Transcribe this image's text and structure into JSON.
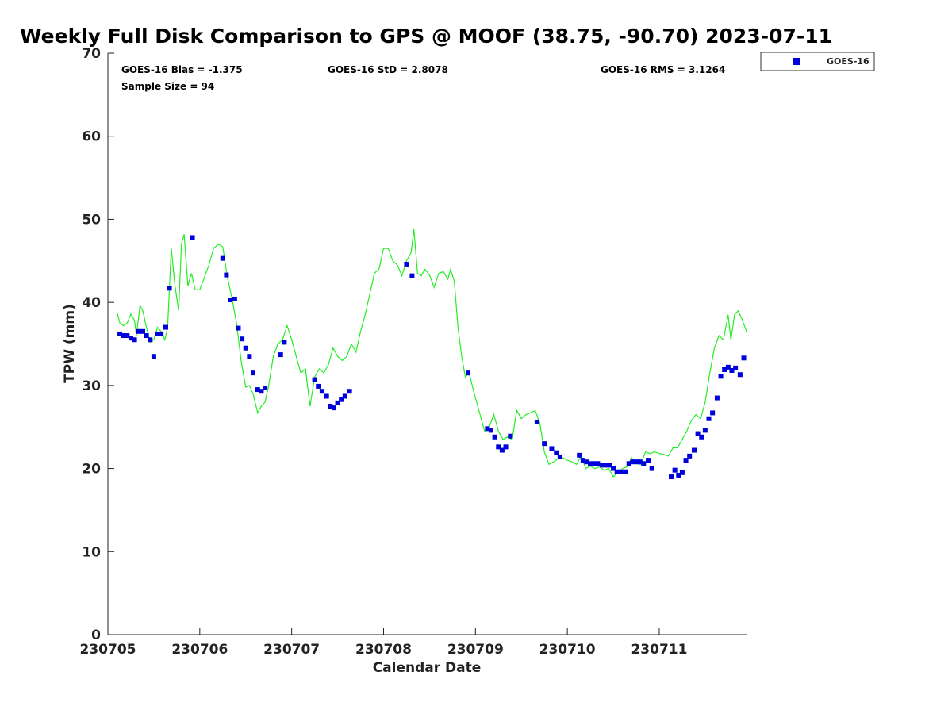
{
  "chart_data": {
    "type": "scatter",
    "title": "Weekly Full Disk Comparison to GPS @ MOOF (38.75, -90.70) 2023-07-11",
    "xlabel": "Calendar Date",
    "ylabel": "TPW (mm)",
    "xlim": [
      230705,
      230711.95
    ],
    "ylim": [
      0,
      70
    ],
    "x_ticks": [
      {
        "value": 230705,
        "label": "230705"
      },
      {
        "value": 230706,
        "label": "230706"
      },
      {
        "value": 230707,
        "label": "230707"
      },
      {
        "value": 230708,
        "label": "230708"
      },
      {
        "value": 230709,
        "label": "230709"
      },
      {
        "value": 230710,
        "label": "230710"
      },
      {
        "value": 230711,
        "label": "230711"
      }
    ],
    "y_ticks": [
      {
        "value": 0,
        "label": "0"
      },
      {
        "value": 10,
        "label": "10"
      },
      {
        "value": 20,
        "label": "20"
      },
      {
        "value": 30,
        "label": "30"
      },
      {
        "value": 40,
        "label": "40"
      },
      {
        "value": 50,
        "label": "50"
      },
      {
        "value": 60,
        "label": "60"
      },
      {
        "value": 70,
        "label": "70"
      }
    ],
    "grid": false,
    "legend_position": "top-right, outside plot",
    "stats": {
      "bias": "GOES-16 Bias = -1.375",
      "std": "GOES-16 StD = 2.8078",
      "rms": "GOES-16 RMS = 3.1264",
      "sample": "Sample Size = 94"
    },
    "series": [
      {
        "name": "GOES-16",
        "marker": "square",
        "color": "#0000dd",
        "points": [
          [
            230705.13,
            36.2
          ],
          [
            230705.17,
            36.0
          ],
          [
            230705.21,
            36.0
          ],
          [
            230705.25,
            35.7
          ],
          [
            230705.29,
            35.5
          ],
          [
            230705.33,
            36.5
          ],
          [
            230705.38,
            36.5
          ],
          [
            230705.42,
            36.0
          ],
          [
            230705.46,
            35.5
          ],
          [
            230705.5,
            33.5
          ],
          [
            230705.54,
            36.2
          ],
          [
            230705.58,
            36.2
          ],
          [
            230705.63,
            37.0
          ],
          [
            230705.67,
            41.7
          ],
          [
            230705.92,
            47.8
          ],
          [
            230706.25,
            45.3
          ],
          [
            230706.29,
            43.3
          ],
          [
            230706.33,
            40.3
          ],
          [
            230706.38,
            40.4
          ],
          [
            230706.42,
            36.9
          ],
          [
            230706.46,
            35.6
          ],
          [
            230706.5,
            34.5
          ],
          [
            230706.54,
            33.5
          ],
          [
            230706.58,
            31.5
          ],
          [
            230706.63,
            29.5
          ],
          [
            230706.67,
            29.3
          ],
          [
            230706.71,
            29.7
          ],
          [
            230706.88,
            33.7
          ],
          [
            230706.92,
            35.2
          ],
          [
            230707.25,
            30.7
          ],
          [
            230707.29,
            29.9
          ],
          [
            230707.33,
            29.3
          ],
          [
            230707.38,
            28.7
          ],
          [
            230707.42,
            27.5
          ],
          [
            230707.46,
            27.3
          ],
          [
            230707.5,
            27.9
          ],
          [
            230707.54,
            28.3
          ],
          [
            230707.58,
            28.7
          ],
          [
            230707.63,
            29.3
          ],
          [
            230708.25,
            44.6
          ],
          [
            230708.31,
            43.2
          ],
          [
            230708.92,
            31.5
          ],
          [
            230709.13,
            24.8
          ],
          [
            230709.17,
            24.6
          ],
          [
            230709.21,
            23.8
          ],
          [
            230709.25,
            22.6
          ],
          [
            230709.29,
            22.2
          ],
          [
            230709.33,
            22.6
          ],
          [
            230709.38,
            23.9
          ],
          [
            230709.67,
            25.6
          ],
          [
            230709.75,
            23.0
          ],
          [
            230709.83,
            22.4
          ],
          [
            230709.88,
            21.9
          ],
          [
            230709.92,
            21.4
          ],
          [
            230710.13,
            21.6
          ],
          [
            230710.17,
            21.0
          ],
          [
            230710.21,
            20.8
          ],
          [
            230710.25,
            20.6
          ],
          [
            230710.29,
            20.6
          ],
          [
            230710.33,
            20.6
          ],
          [
            230710.38,
            20.4
          ],
          [
            230710.42,
            20.4
          ],
          [
            230710.46,
            20.4
          ],
          [
            230710.5,
            20.0
          ],
          [
            230710.54,
            19.6
          ],
          [
            230710.58,
            19.6
          ],
          [
            230710.63,
            19.6
          ],
          [
            230710.67,
            20.6
          ],
          [
            230710.71,
            20.8
          ],
          [
            230710.75,
            20.8
          ],
          [
            230710.79,
            20.8
          ],
          [
            230710.83,
            20.6
          ],
          [
            230710.88,
            21.0
          ],
          [
            230710.92,
            20.0
          ],
          [
            230711.13,
            19.0
          ],
          [
            230711.17,
            19.8
          ],
          [
            230711.21,
            19.2
          ],
          [
            230711.25,
            19.5
          ],
          [
            230711.29,
            21.0
          ],
          [
            230711.33,
            21.5
          ],
          [
            230711.38,
            22.2
          ],
          [
            230711.42,
            24.2
          ],
          [
            230711.46,
            23.8
          ],
          [
            230711.5,
            24.6
          ],
          [
            230711.54,
            26.0
          ],
          [
            230711.58,
            26.7
          ],
          [
            230711.63,
            28.5
          ],
          [
            230711.67,
            31.1
          ],
          [
            230711.71,
            31.9
          ],
          [
            230711.75,
            32.2
          ],
          [
            230711.79,
            31.8
          ],
          [
            230711.83,
            32.1
          ],
          [
            230711.88,
            31.3
          ],
          [
            230711.92,
            33.3
          ]
        ]
      },
      {
        "type": "line",
        "color": "#22ee22",
        "points": [
          [
            230705.1,
            38.8
          ],
          [
            230705.13,
            37.5
          ],
          [
            230705.17,
            37.2
          ],
          [
            230705.21,
            37.5
          ],
          [
            230705.25,
            38.6
          ],
          [
            230705.29,
            37.8
          ],
          [
            230705.31,
            36.0
          ],
          [
            230705.35,
            39.6
          ],
          [
            230705.38,
            39.0
          ],
          [
            230705.42,
            37.0
          ],
          [
            230705.46,
            35.2
          ],
          [
            230705.5,
            35.5
          ],
          [
            230705.54,
            37.0
          ],
          [
            230705.58,
            36.5
          ],
          [
            230705.62,
            35.5
          ],
          [
            230705.65,
            37.0
          ],
          [
            230705.69,
            46.5
          ],
          [
            230705.73,
            42.0
          ],
          [
            230705.77,
            39.0
          ],
          [
            230705.8,
            47.0
          ],
          [
            230705.83,
            48.2
          ],
          [
            230705.87,
            42.0
          ],
          [
            230705.91,
            43.5
          ],
          [
            230705.95,
            41.5
          ],
          [
            230706.0,
            41.5
          ],
          [
            230706.05,
            43.0
          ],
          [
            230706.1,
            44.5
          ],
          [
            230706.15,
            46.5
          ],
          [
            230706.2,
            47.0
          ],
          [
            230706.25,
            46.7
          ],
          [
            230706.3,
            43.0
          ],
          [
            230706.35,
            40.5
          ],
          [
            230706.4,
            37.5
          ],
          [
            230706.45,
            33.0
          ],
          [
            230706.5,
            29.8
          ],
          [
            230706.54,
            30.0
          ],
          [
            230706.58,
            29.0
          ],
          [
            230706.63,
            26.7
          ],
          [
            230706.67,
            27.5
          ],
          [
            230706.71,
            28.0
          ],
          [
            230706.75,
            30.0
          ],
          [
            230706.8,
            33.5
          ],
          [
            230706.85,
            35.0
          ],
          [
            230706.9,
            35.5
          ],
          [
            230706.95,
            37.2
          ],
          [
            230707.0,
            35.5
          ],
          [
            230707.05,
            33.5
          ],
          [
            230707.1,
            31.5
          ],
          [
            230707.15,
            32.0
          ],
          [
            230707.2,
            27.5
          ],
          [
            230707.25,
            31.0
          ],
          [
            230707.3,
            32.0
          ],
          [
            230707.35,
            31.5
          ],
          [
            230707.4,
            32.5
          ],
          [
            230707.45,
            34.5
          ],
          [
            230707.5,
            33.5
          ],
          [
            230707.55,
            33.0
          ],
          [
            230707.6,
            33.5
          ],
          [
            230707.65,
            35.0
          ],
          [
            230707.7,
            34.0
          ],
          [
            230707.75,
            36.5
          ],
          [
            230707.8,
            38.5
          ],
          [
            230707.85,
            41.0
          ],
          [
            230707.9,
            43.5
          ],
          [
            230707.95,
            44.0
          ],
          [
            230708.0,
            46.5
          ],
          [
            230708.05,
            46.5
          ],
          [
            230708.1,
            45.0
          ],
          [
            230708.15,
            44.5
          ],
          [
            230708.2,
            43.2
          ],
          [
            230708.25,
            45.0
          ],
          [
            230708.3,
            46.0
          ],
          [
            230708.33,
            48.8
          ],
          [
            230708.37,
            43.5
          ],
          [
            230708.41,
            43.2
          ],
          [
            230708.45,
            44.0
          ],
          [
            230708.5,
            43.3
          ],
          [
            230708.55,
            41.8
          ],
          [
            230708.6,
            43.5
          ],
          [
            230708.65,
            43.7
          ],
          [
            230708.7,
            42.8
          ],
          [
            230708.73,
            44.0
          ],
          [
            230708.77,
            42.5
          ],
          [
            230708.81,
            37.0
          ],
          [
            230708.85,
            33.5
          ],
          [
            230708.89,
            31.0
          ],
          [
            230708.93,
            31.5
          ],
          [
            230709.0,
            28.5
          ],
          [
            230709.05,
            26.5
          ],
          [
            230709.1,
            24.5
          ],
          [
            230709.15,
            25.0
          ],
          [
            230709.2,
            26.5
          ],
          [
            230709.25,
            24.5
          ],
          [
            230709.3,
            23.5
          ],
          [
            230709.35,
            23.8
          ],
          [
            230709.4,
            23.5
          ],
          [
            230709.45,
            27.0
          ],
          [
            230709.5,
            26.0
          ],
          [
            230709.55,
            26.5
          ],
          [
            230709.6,
            26.7
          ],
          [
            230709.65,
            27.0
          ],
          [
            230709.7,
            25.5
          ],
          [
            230709.75,
            22.0
          ],
          [
            230709.8,
            20.5
          ],
          [
            230709.85,
            20.8
          ],
          [
            230709.9,
            21.2
          ],
          [
            230709.95,
            21.3
          ],
          [
            230710.0,
            21.0
          ],
          [
            230710.05,
            20.8
          ],
          [
            230710.1,
            20.5
          ],
          [
            230710.15,
            21.5
          ],
          [
            230710.2,
            20.0
          ],
          [
            230710.25,
            20.3
          ],
          [
            230710.3,
            20.0
          ],
          [
            230710.35,
            20.2
          ],
          [
            230710.4,
            19.8
          ],
          [
            230710.45,
            20.0
          ],
          [
            230710.5,
            19.0
          ],
          [
            230710.55,
            19.5
          ],
          [
            230710.6,
            20.0
          ],
          [
            230710.65,
            20.2
          ],
          [
            230710.7,
            21.3
          ],
          [
            230710.75,
            20.6
          ],
          [
            230710.8,
            20.5
          ],
          [
            230710.85,
            22.0
          ],
          [
            230710.9,
            21.8
          ],
          [
            230710.95,
            22.0
          ],
          [
            230711.0,
            21.8
          ],
          [
            230711.05,
            21.7
          ],
          [
            230711.1,
            21.5
          ],
          [
            230711.15,
            22.5
          ],
          [
            230711.2,
            22.5
          ],
          [
            230711.25,
            23.5
          ],
          [
            230711.3,
            24.5
          ],
          [
            230711.35,
            25.8
          ],
          [
            230711.4,
            26.5
          ],
          [
            230711.45,
            26.0
          ],
          [
            230711.5,
            28.0
          ],
          [
            230711.55,
            31.5
          ],
          [
            230711.6,
            34.5
          ],
          [
            230711.65,
            36.0
          ],
          [
            230711.7,
            35.5
          ],
          [
            230711.75,
            38.5
          ],
          [
            230711.78,
            35.5
          ],
          [
            230711.82,
            38.5
          ],
          [
            230711.86,
            39.0
          ],
          [
            230711.9,
            38.0
          ],
          [
            230711.95,
            36.5
          ]
        ]
      }
    ],
    "legend": [
      {
        "label": "GOES-16",
        "color": "#0000dd",
        "marker": "square"
      }
    ]
  }
}
